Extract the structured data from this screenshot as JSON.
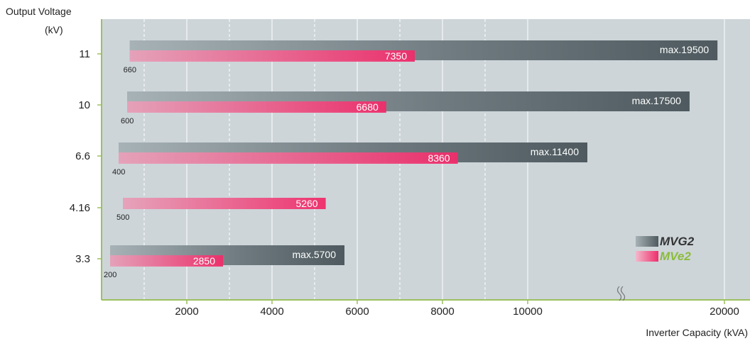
{
  "chart_data": {
    "type": "bar",
    "orientation": "horizontal",
    "ylabel_line1": "Output Voltage",
    "ylabel_line2": "(kV)",
    "xlabel": "Inverter Capacity (kVA)",
    "x_ticks": [
      "2000",
      "4000",
      "6000",
      "8000",
      "10000",
      "20000"
    ],
    "x_tick_values": [
      2000,
      4000,
      6000,
      8000,
      10000,
      20000
    ],
    "dashed_grid_values": [
      1000,
      3000,
      5000,
      7000,
      9000
    ],
    "axis_break": true,
    "axis_break_after": 12000,
    "xlim": [
      0,
      20500
    ],
    "legend_position": "bottom-right",
    "legend_labels": {
      "mvg2": "MVG2",
      "mve2": "MVe2"
    },
    "categories": [
      "11",
      "10",
      "6.6",
      "4.16",
      "3.3"
    ],
    "series": [
      {
        "name": "MVG2",
        "key": "mvg2",
        "bars": [
          {
            "category": "11",
            "min": 660,
            "max": 19500,
            "label": "max.19500"
          },
          {
            "category": "10",
            "min": 600,
            "max": 17500,
            "label": "max.17500"
          },
          {
            "category": "6.6",
            "min": 400,
            "max": 11400,
            "label": "max.11400"
          },
          {
            "category": "3.3",
            "min": 200,
            "max": 5700,
            "label": "max.5700"
          }
        ]
      },
      {
        "name": "MVe2",
        "key": "mve2",
        "bars": [
          {
            "category": "11",
            "min": 660,
            "max": 7350,
            "label": "7350"
          },
          {
            "category": "10",
            "min": 600,
            "max": 6680,
            "label": "6680"
          },
          {
            "category": "6.6",
            "min": 400,
            "max": 8360,
            "label": "8360"
          },
          {
            "category": "4.16",
            "min": 500,
            "max": 5260,
            "label": "5260"
          },
          {
            "category": "3.3",
            "min": 200,
            "max": 2850,
            "label": "2850"
          }
        ]
      }
    ],
    "min_labels": [
      {
        "category": "11",
        "label": "660"
      },
      {
        "category": "10",
        "label": "600"
      },
      {
        "category": "6.6",
        "label": "400"
      },
      {
        "category": "4.16",
        "label": "500"
      },
      {
        "category": "3.3",
        "label": "200"
      }
    ],
    "colors": {
      "plot_bg": "#cdd5d9",
      "axis": "#9cc05f",
      "grid": "#ffffff",
      "mvg2_dark": "#4e5a5f",
      "mvg2_light": "#a7b2b6",
      "mve2_dark": "#ef2d6b",
      "mve2_light": "#e7a1b9",
      "mvg2_legend_text": "#333333",
      "mve2_legend_text": "#8cbc3c"
    }
  }
}
